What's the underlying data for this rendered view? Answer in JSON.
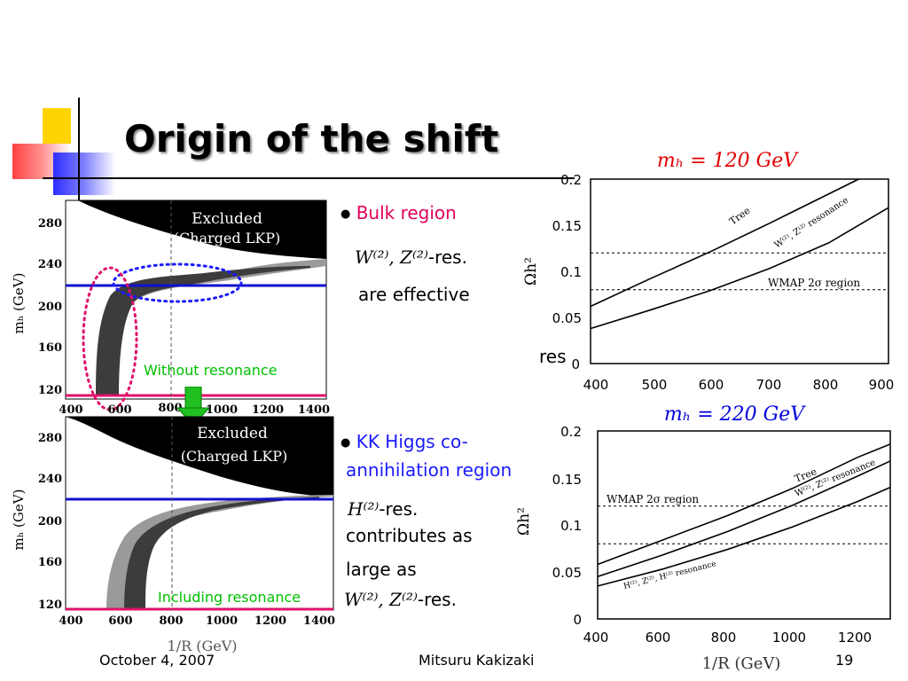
{
  "slide": {
    "title": "Origin of the shift",
    "footer": {
      "date": "October 4, 2007",
      "author": "Mitsuru Kakizaki",
      "page": "19"
    }
  },
  "text": {
    "bulk": {
      "bullet": "●",
      "heading": "Bulk region",
      "math": "W⁽²⁾, Z⁽²⁾",
      "res_suffix": "-res.",
      "line2": "are effective",
      "stray": "res"
    },
    "kk": {
      "bullet": "●",
      "heading_line1": "KK Higgs co-",
      "heading_line2": "annihilation region",
      "math1": "H⁽²⁾",
      "res_suffix1": "-res.",
      "line2": "contributes as",
      "line3": "large as",
      "math2": "W⁽²⁾, Z⁽²⁾",
      "res_suffix2": "-res."
    }
  },
  "left_panels": {
    "top": {
      "excluded_line1": "Excluded",
      "excluded_line2": "(Charged LKP)",
      "label": "Without resonance",
      "ylabel": "mₕ (GeV)"
    },
    "bottom": {
      "excluded_line1": "Excluded",
      "excluded_line2": "(Charged LKP)",
      "label": "Including resonance",
      "ylabel": "mₕ (GeV)",
      "xlabel": "1/R (GeV)"
    },
    "y_ticks": [
      "280",
      "240",
      "200",
      "160",
      "120"
    ],
    "x_ticks": [
      "400",
      "600",
      "800",
      "1000",
      "1200",
      "1400"
    ]
  },
  "chart_data": [
    {
      "type": "line",
      "title": "mₕ = 120 GeV",
      "xlabel": "",
      "ylabel": "Ωh²",
      "xlim": [
        400,
        900
      ],
      "ylim": [
        0,
        0.2
      ],
      "x_ticks": [
        "400",
        "500",
        "600",
        "700",
        "800",
        "900"
      ],
      "y_ticks": [
        "0.2",
        "0.15",
        "0.1",
        "0.05",
        "0"
      ],
      "series": [
        {
          "name": "Tree",
          "x": [
            400,
            500,
            600,
            700,
            800,
            850
          ],
          "y": [
            0.062,
            0.092,
            0.121,
            0.152,
            0.184,
            0.2
          ]
        },
        {
          "name": "W⁽²⁾, Z⁽²⁾ resonance",
          "x": [
            400,
            500,
            600,
            700,
            800,
            900
          ],
          "y": [
            0.038,
            0.058,
            0.079,
            0.103,
            0.131,
            0.169
          ]
        }
      ],
      "hlines": [
        {
          "y": 0.12
        },
        {
          "y": 0.08,
          "label": "WMAP 2σ region"
        }
      ]
    },
    {
      "type": "line",
      "title": "mₕ = 220 GeV",
      "xlabel": "1/R (GeV)",
      "ylabel": "Ωh²",
      "xlim": [
        400,
        1300
      ],
      "ylim": [
        0,
        0.2
      ],
      "x_ticks": [
        "400",
        "600",
        "800",
        "1000",
        "1200"
      ],
      "y_ticks": [
        "0.2",
        "0.15",
        "0.1",
        "0.05",
        "0"
      ],
      "series": [
        {
          "name": "Tree",
          "x": [
            400,
            600,
            800,
            1000,
            1200,
            1300
          ],
          "y": [
            0.058,
            0.084,
            0.11,
            0.139,
            0.172,
            0.186
          ]
        },
        {
          "name": "W⁽²⁾, Z⁽²⁾ resonance",
          "x": [
            400,
            600,
            800,
            1000,
            1200,
            1300
          ],
          "y": [
            0.045,
            0.068,
            0.093,
            0.121,
            0.152,
            0.168
          ]
        },
        {
          "name": "H⁽²⁾, Z⁽²⁾, H⁽²⁾ resonance",
          "x": [
            400,
            600,
            800,
            1000,
            1200,
            1300
          ],
          "y": [
            0.035,
            0.053,
            0.074,
            0.098,
            0.125,
            0.14
          ]
        }
      ],
      "hlines": [
        {
          "y": 0.12,
          "label": "WMAP 2σ region"
        },
        {
          "y": 0.08
        }
      ]
    }
  ],
  "colors": {
    "title_red": "#e00000",
    "title_blue": "#0000dd",
    "heading_red": "#e0005a",
    "heading_blue": "#1a1aff",
    "label_green": "#00c000",
    "line_blue": "#1010d0",
    "line_pink": "#e0106a"
  }
}
